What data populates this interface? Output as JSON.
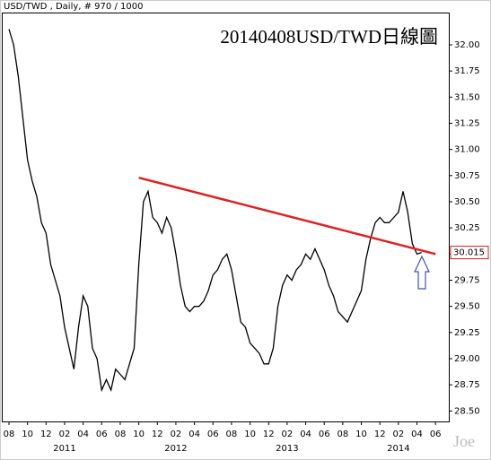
{
  "chart_data": {
    "type": "line",
    "header": "USD/TWD , Daily, # 970 / 1000",
    "title": "20140408USD/TWD日線圖",
    "watermark": "Joe",
    "categories": [
      "08",
      null,
      null,
      null,
      "10",
      null,
      null,
      null,
      "12",
      null,
      null,
      null,
      "02",
      null,
      null,
      null,
      "04",
      null,
      null,
      null,
      "06",
      null,
      null,
      null,
      "08",
      null,
      null,
      null,
      "10",
      null,
      null,
      null,
      "12",
      null,
      null,
      null,
      "02",
      null,
      null,
      null,
      "04",
      null,
      null,
      null,
      "06",
      null,
      null,
      null,
      "08",
      null,
      null,
      null,
      "10",
      null,
      null,
      null,
      "12",
      null,
      null,
      null,
      "02",
      null,
      null,
      null,
      "04",
      null,
      null,
      null,
      "06",
      null,
      null,
      null,
      "08",
      null,
      null,
      null,
      "10",
      null,
      null,
      null,
      "12",
      null,
      null,
      null,
      "02",
      null,
      null,
      null,
      "04",
      null,
      null,
      null,
      "06"
    ],
    "x_groups": [
      "2011",
      "2012",
      "2013",
      "2014"
    ],
    "series": [
      {
        "name": "USD/TWD",
        "color": "#000000",
        "values": [
          32.15,
          32.0,
          31.7,
          31.3,
          30.9,
          30.7,
          30.55,
          30.3,
          30.2,
          29.9,
          29.75,
          29.6,
          29.3,
          29.1,
          28.9,
          29.3,
          29.6,
          29.5,
          29.1,
          29.0,
          28.7,
          28.8,
          28.7,
          28.9,
          28.85,
          28.8,
          28.95,
          29.1,
          29.9,
          30.5,
          30.6,
          30.35,
          30.3,
          30.2,
          30.35,
          30.25,
          30.0,
          29.7,
          29.5,
          29.45,
          29.5,
          29.5,
          29.55,
          29.65,
          29.8,
          29.85,
          29.95,
          30.0,
          29.85,
          29.6,
          29.35,
          29.3,
          29.15,
          29.1,
          29.05,
          28.95,
          28.95,
          29.1,
          29.5,
          29.7,
          29.8,
          29.75,
          29.85,
          29.9,
          30.0,
          29.95,
          30.05,
          29.95,
          29.85,
          29.7,
          29.6,
          29.45,
          29.4,
          29.35,
          29.45,
          29.55,
          29.65,
          29.95,
          30.15,
          30.3,
          30.35,
          30.3,
          30.3,
          30.35,
          30.4,
          30.6,
          30.4,
          30.1,
          30.0,
          30.015,
          null,
          null,
          null
        ]
      }
    ],
    "last_price": 30.015,
    "trendline": {
      "color": "#e02020",
      "x": [
        28,
        92
      ],
      "values": [
        30.73,
        30.0
      ]
    },
    "ylim": [
      28.4,
      32.3
    ],
    "yticks": [
      {
        "value": 28.5,
        "label": "28.50"
      },
      28.75,
      {
        "value": 29,
        "label": "29.00"
      },
      29.25,
      {
        "value": 29.5,
        "label": "29.50"
      },
      29.75,
      {
        "value": 30,
        "label": "30.00"
      },
      30.25,
      {
        "value": 30.5,
        "label": "30.50"
      },
      30.75,
      {
        "value": 31,
        "label": "31.00"
      },
      31.25,
      {
        "value": 31.5,
        "label": "31.50"
      },
      31.75,
      {
        "value": 32,
        "label": "32.00"
      }
    ],
    "grid": false
  }
}
